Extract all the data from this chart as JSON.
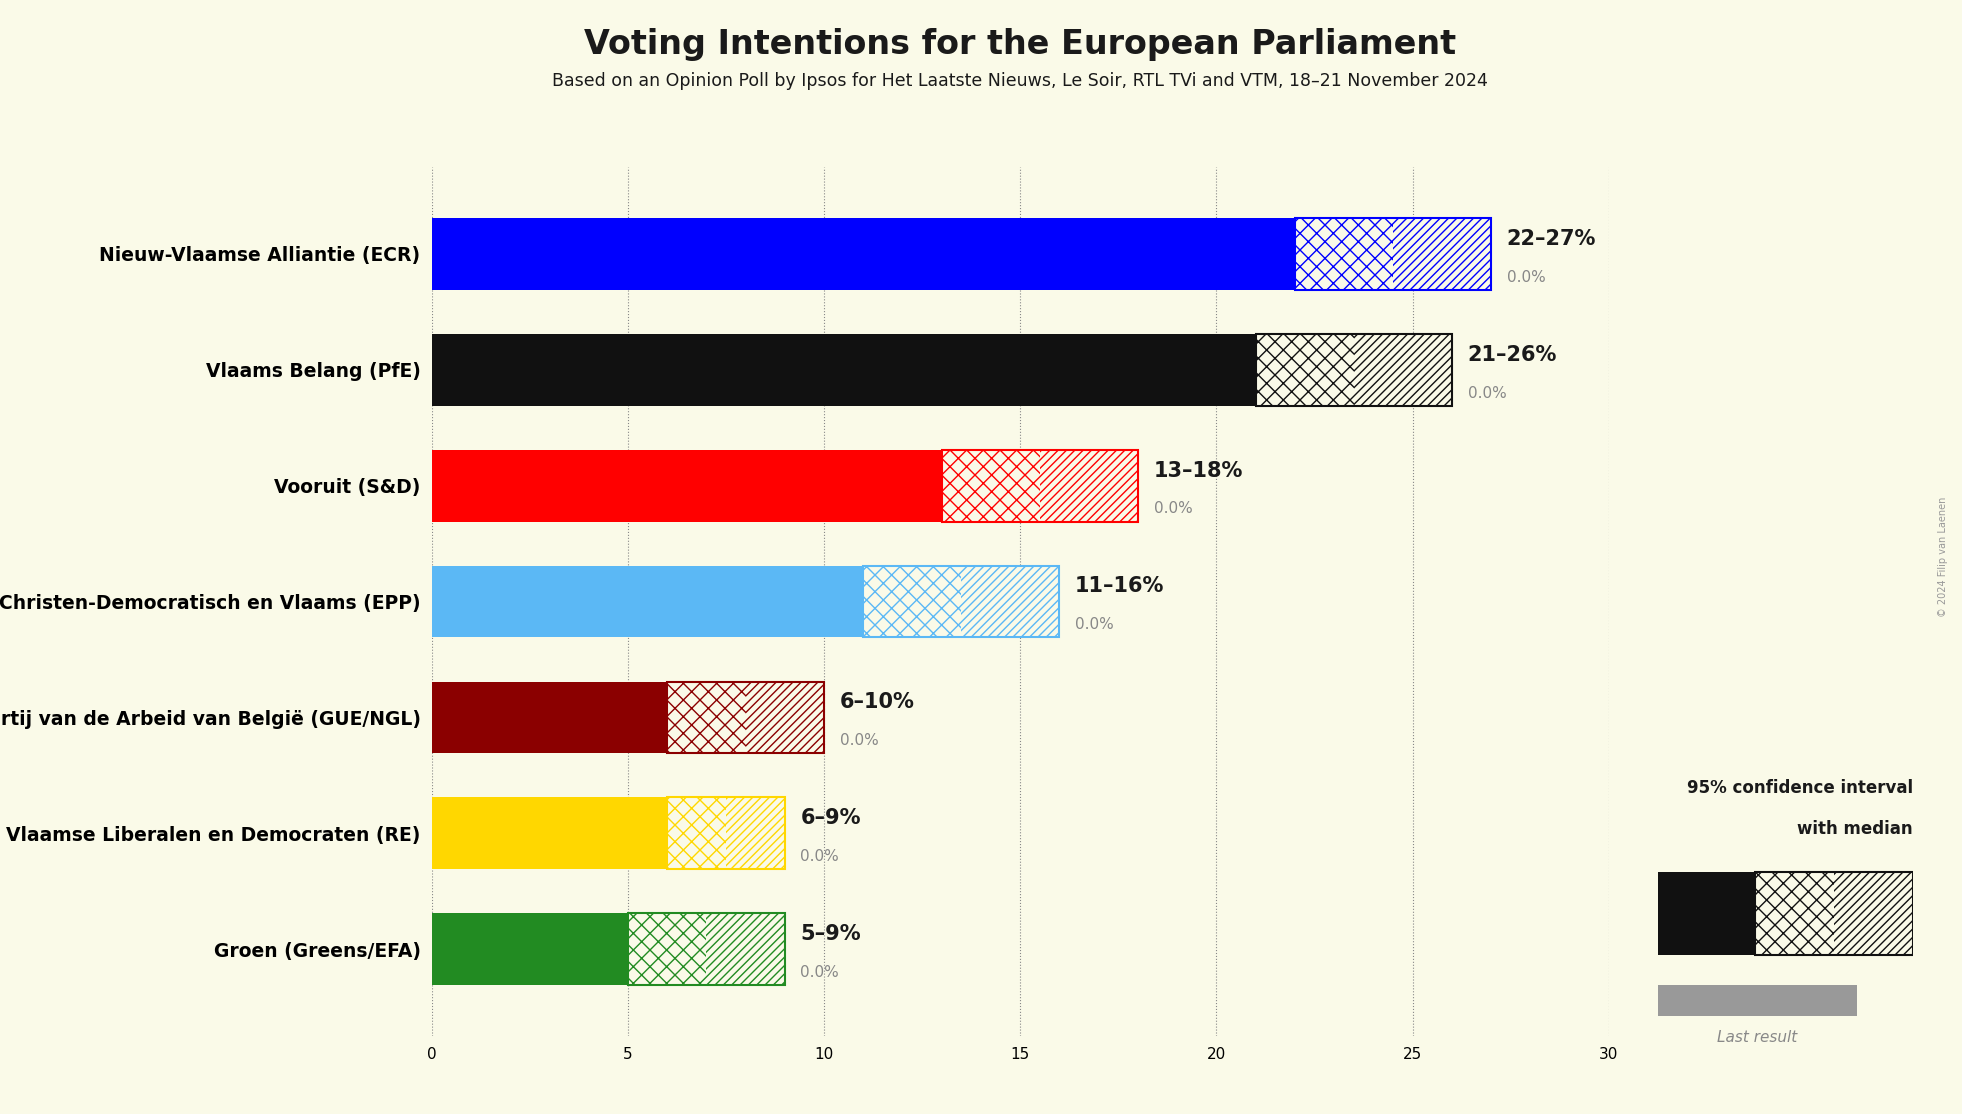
{
  "title": "Voting Intentions for the European Parliament",
  "subtitle": "Based on an Opinion Poll by Ipsos for Het Laatste Nieuws, Le Soir, RTL TVi and VTM, 18–21 November 2024",
  "copyright": "© 2024 Filip van Laenen",
  "background_color": "#FAFAE8",
  "parties": [
    {
      "name": "Nieuw-Vlaamse Alliantie (ECR)",
      "color": "#0000FF",
      "median": 22,
      "ci_low": 22,
      "ci_high": 27,
      "last_result": 0.0,
      "label": "22–27%"
    },
    {
      "name": "Vlaams Belang (PfE)",
      "color": "#111111",
      "median": 21,
      "ci_low": 21,
      "ci_high": 26,
      "last_result": 0.0,
      "label": "21–26%"
    },
    {
      "name": "Vooruit (S&D)",
      "color": "#FF0000",
      "median": 13,
      "ci_low": 13,
      "ci_high": 18,
      "last_result": 0.0,
      "label": "13–18%"
    },
    {
      "name": "Christen-Democratisch en Vlaams (EPP)",
      "color": "#5BB8F5",
      "median": 11,
      "ci_low": 11,
      "ci_high": 16,
      "last_result": 0.0,
      "label": "11–16%"
    },
    {
      "name": "Partij van de Arbeid van België (GUE/NGL)",
      "color": "#8B0000",
      "median": 6,
      "ci_low": 6,
      "ci_high": 10,
      "last_result": 0.0,
      "label": "6–10%"
    },
    {
      "name": "Open Vlaamse Liberalen en Democraten (RE)",
      "color": "#FFD700",
      "median": 6,
      "ci_low": 6,
      "ci_high": 9,
      "last_result": 0.0,
      "label": "6–9%"
    },
    {
      "name": "Groen (Greens/EFA)",
      "color": "#228B22",
      "median": 5,
      "ci_low": 5,
      "ci_high": 9,
      "last_result": 0.0,
      "label": "5–9%"
    }
  ],
  "xlim": [
    0,
    30
  ],
  "xticks": [
    0,
    5,
    10,
    15,
    20,
    25,
    30
  ],
  "bar_height": 0.62,
  "legend_text_line1": "95% confidence interval",
  "legend_text_line2": "with median",
  "legend_last_result": "Last result"
}
